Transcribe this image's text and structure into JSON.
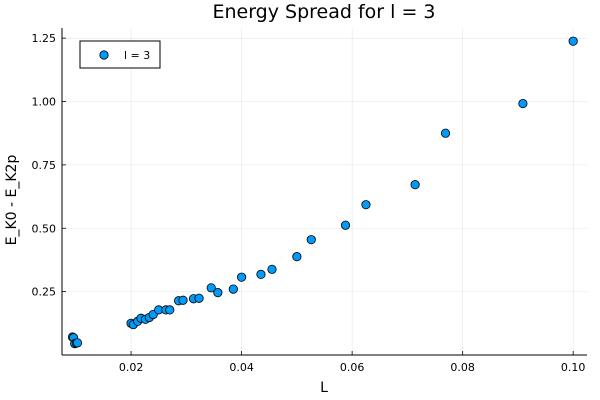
{
  "chart_data": {
    "type": "scatter",
    "title": "Energy Spread for l = 3",
    "xlabel": "L",
    "ylabel": "E_K0 - E_K2p",
    "xlim": [
      0.0075,
      0.1025
    ],
    "ylim": [
      0.0,
      1.29
    ],
    "xticks": [
      0.02,
      0.04,
      0.06,
      0.08,
      0.1
    ],
    "xtick_labels": [
      "0.02",
      "0.04",
      "0.06",
      "0.08",
      "0.10"
    ],
    "yticks": [
      0.25,
      0.5,
      0.75,
      1.0,
      1.25
    ],
    "ytick_labels": [
      "0.25",
      "0.50",
      "0.75",
      "1.00",
      "1.25"
    ],
    "grid": true,
    "legend_position": "top-left",
    "series": [
      {
        "name": "l = 3",
        "color": "#009af9",
        "points": [
          [
            0.0094,
            0.071
          ],
          [
            0.0096,
            0.068
          ],
          [
            0.0098,
            0.045
          ],
          [
            0.0101,
            0.047
          ],
          [
            0.0103,
            0.048
          ],
          [
            0.02,
            0.125
          ],
          [
            0.0204,
            0.12
          ],
          [
            0.0212,
            0.133
          ],
          [
            0.0218,
            0.145
          ],
          [
            0.0226,
            0.141
          ],
          [
            0.0233,
            0.148
          ],
          [
            0.024,
            0.16
          ],
          [
            0.025,
            0.178
          ],
          [
            0.0263,
            0.178
          ],
          [
            0.027,
            0.178
          ],
          [
            0.0286,
            0.214
          ],
          [
            0.0294,
            0.216
          ],
          [
            0.0313,
            0.222
          ],
          [
            0.0323,
            0.224
          ],
          [
            0.0345,
            0.265
          ],
          [
            0.0357,
            0.246
          ],
          [
            0.0385,
            0.26
          ],
          [
            0.04,
            0.307
          ],
          [
            0.0435,
            0.318
          ],
          [
            0.0455,
            0.338
          ],
          [
            0.05,
            0.388
          ],
          [
            0.0526,
            0.455
          ],
          [
            0.0588,
            0.512
          ],
          [
            0.0625,
            0.593
          ],
          [
            0.0714,
            0.672
          ],
          [
            0.0769,
            0.875
          ],
          [
            0.0909,
            0.992
          ],
          [
            0.1,
            1.238
          ]
        ]
      }
    ]
  }
}
